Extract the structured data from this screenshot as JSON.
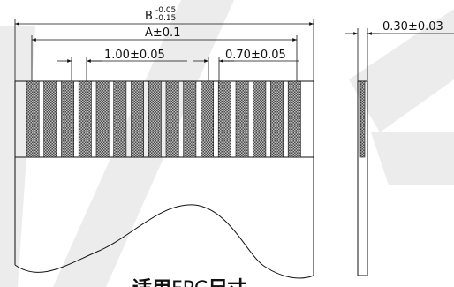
{
  "drawing": {
    "width_label": "B",
    "width_tolerance_upper": "-0.05",
    "width_tolerance_lower": "-0.15",
    "pitch_span_label": "A±0.1",
    "pitch_label": "1.00±0.05",
    "contact_width_label": "0.70±0.05",
    "thickness_label": "0.30±0.03",
    "contact_count": 16,
    "caption_part1": "适用",
    "caption_part2": "FPC",
    "caption_part3": "尺寸",
    "colors": {
      "line": "#111111",
      "contact_fill": "#2a2a2a",
      "watermark": "#ececec"
    }
  }
}
